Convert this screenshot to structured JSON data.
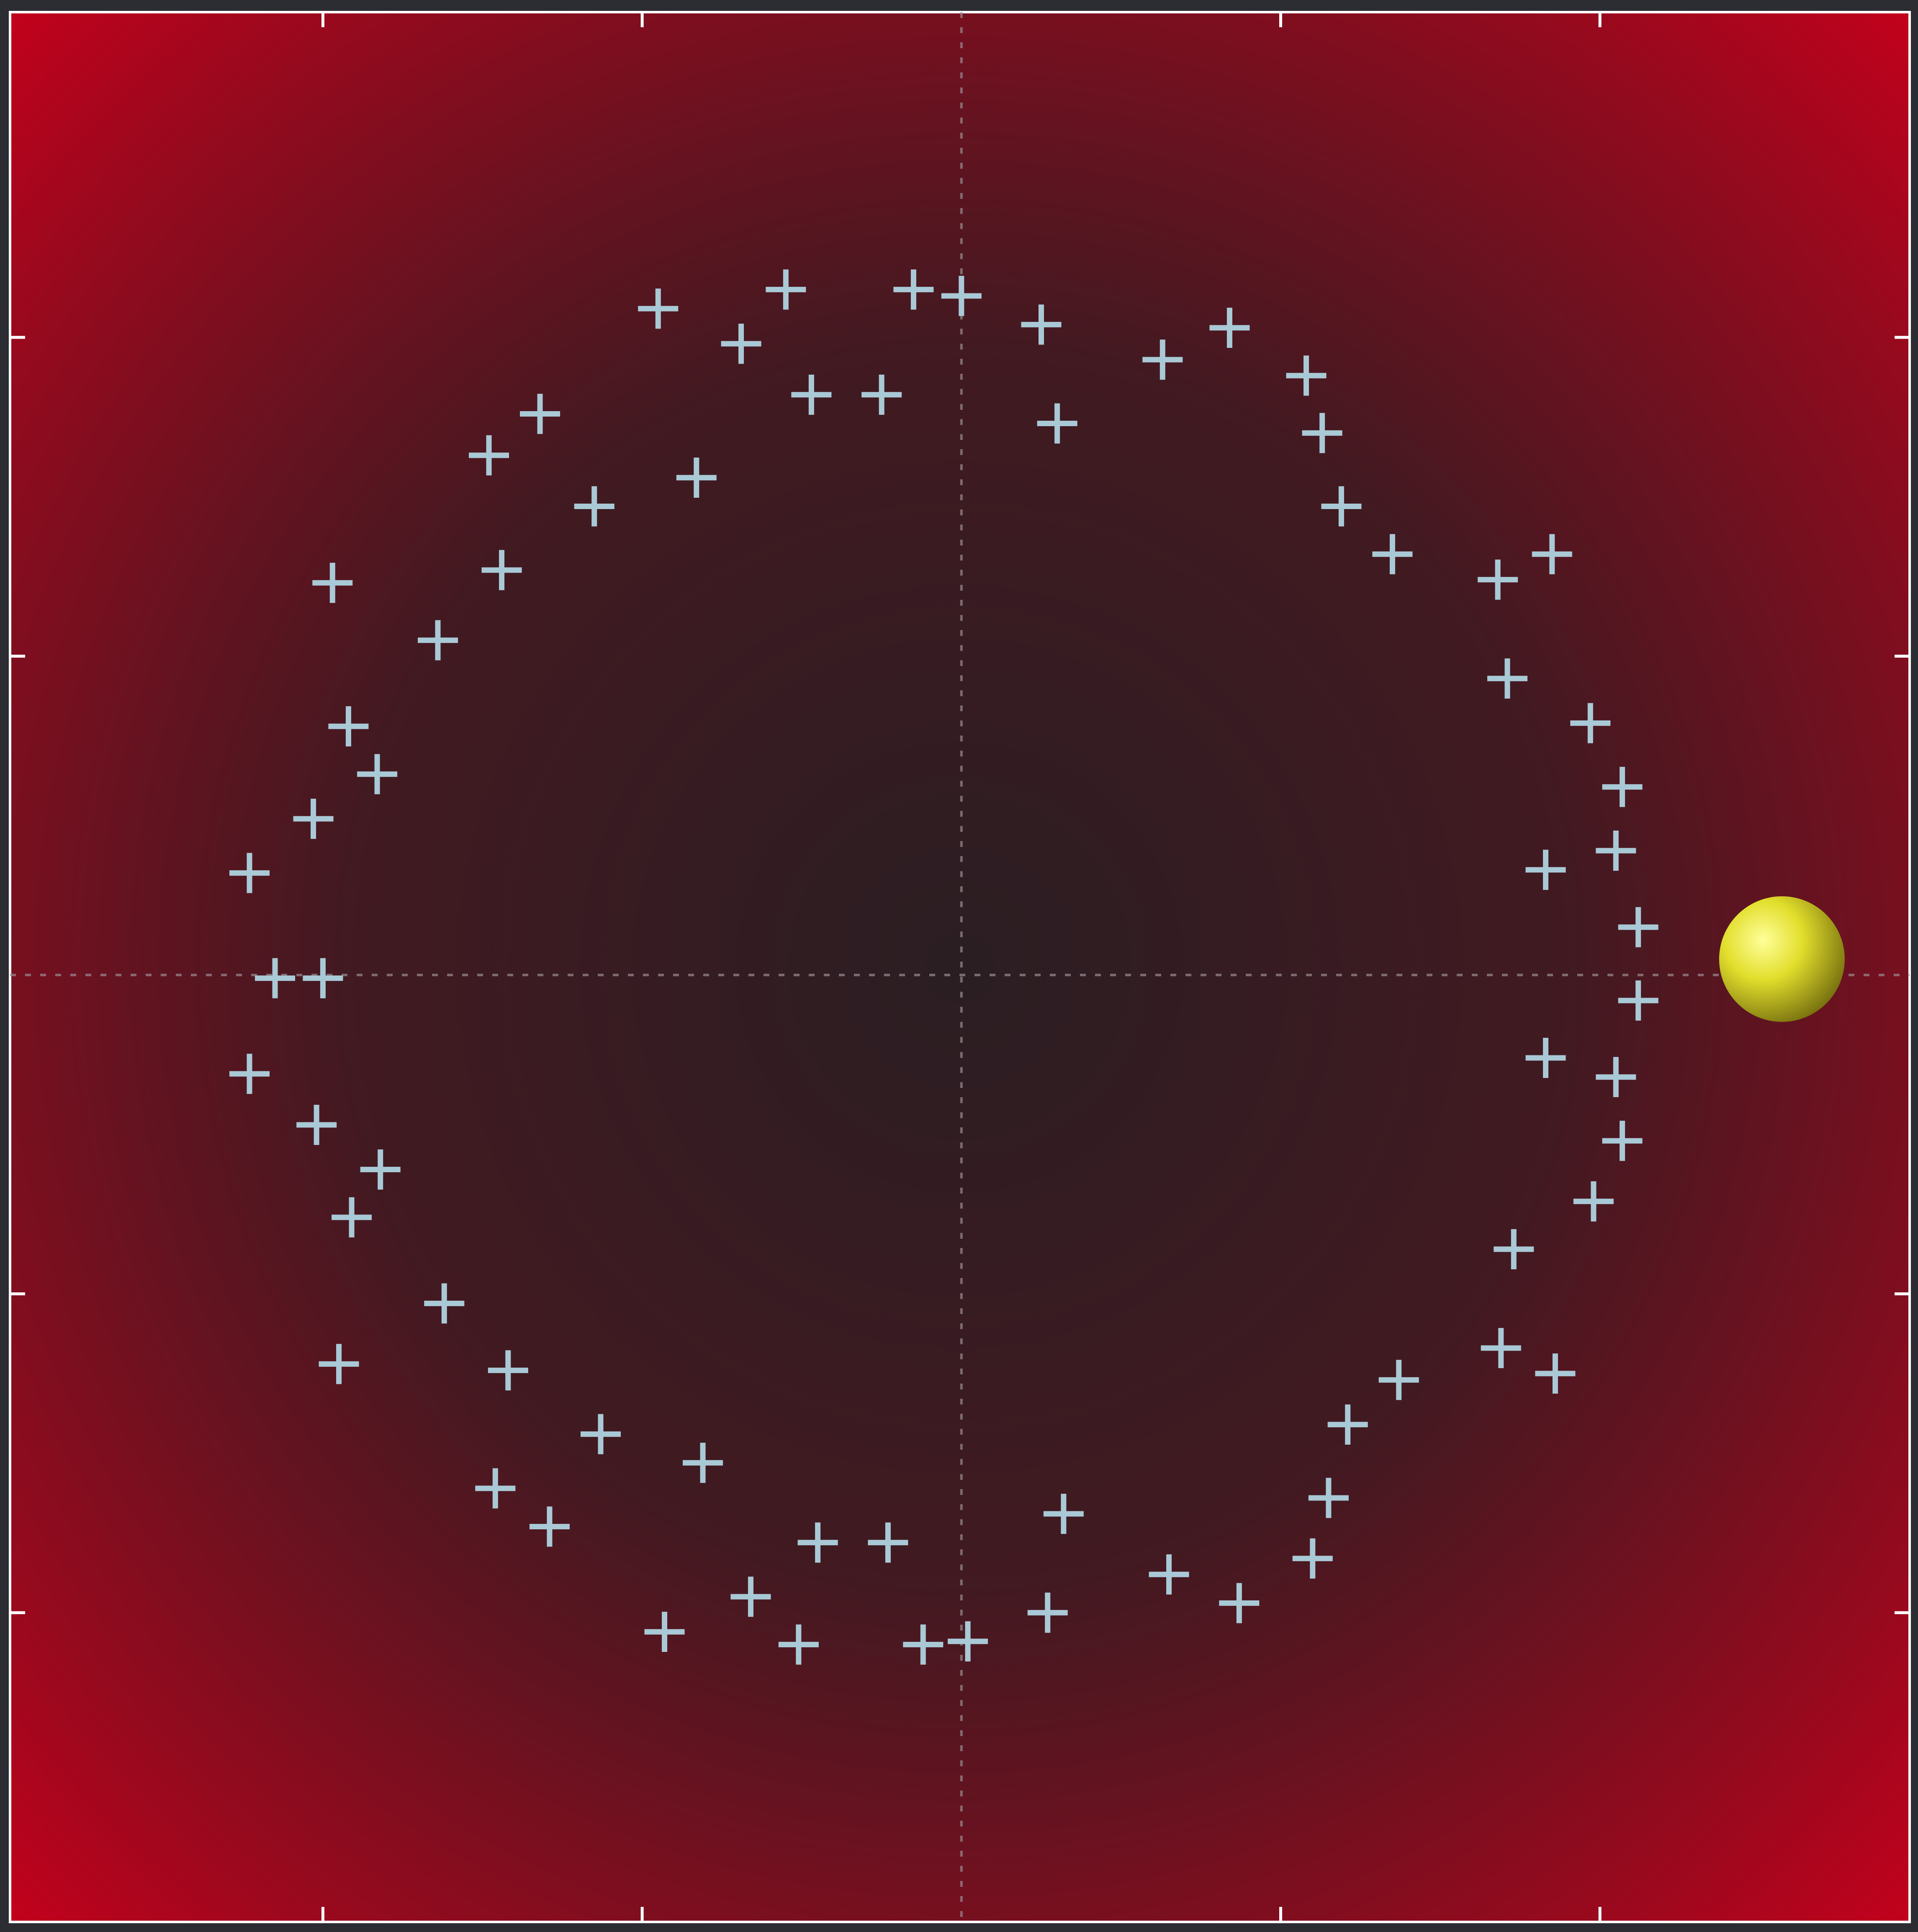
{
  "chart_data": {
    "type": "scatter",
    "xlim": [
      -2.98,
      2.97
    ],
    "ylim": [
      -2.97,
      3.02
    ],
    "xticks": [
      -2,
      -1,
      1,
      2
    ],
    "yticks": [
      -2,
      -1,
      1,
      2
    ],
    "crosshair": true,
    "background": {
      "center": "#2a1e22",
      "edge": "#c8001c"
    },
    "series": [
      {
        "color": "#a9c9d6",
        "x": [
          -0.95,
          -0.55,
          -0.15,
          0.0,
          0.25,
          0.84,
          0.63,
          1.08,
          -0.69,
          -0.47,
          -0.25,
          0.3,
          1.13,
          -1.32,
          -1.48,
          -0.83,
          -1.15,
          1.19,
          1.35,
          1.85,
          1.68,
          -1.97,
          -1.44,
          -1.64,
          1.71,
          -1.92,
          1.97,
          -1.83,
          2.07,
          -2.03,
          2.05,
          1.83,
          -2.23,
          2.12,
          -2.15,
          -2.0,
          2.12,
          -2.23,
          1.83,
          2.05,
          -2.02,
          2.07,
          -1.82,
          -1.91,
          1.98,
          1.73,
          -1.62,
          -1.95,
          -1.42,
          1.69,
          1.37,
          1.86,
          1.21,
          -1.13,
          -0.81,
          -1.46,
          1.15,
          -1.29,
          0.32,
          -0.45,
          -0.23,
          1.1,
          0.65,
          -0.66,
          0.87,
          -0.93,
          0.27,
          -0.51,
          -0.12,
          0.02
        ],
        "values": [
          2.09,
          2.15,
          2.15,
          2.13,
          2.04,
          2.03,
          1.93,
          1.88,
          1.98,
          1.82,
          1.82,
          1.73,
          1.7,
          1.76,
          1.63,
          1.56,
          1.47,
          1.47,
          1.32,
          1.32,
          1.24,
          1.23,
          1.27,
          1.05,
          0.93,
          0.78,
          0.79,
          0.63,
          0.59,
          0.49,
          0.39,
          0.33,
          0.32,
          0.15,
          -0.01,
          -0.01,
          -0.08,
          -0.31,
          -0.26,
          -0.32,
          -0.47,
          -0.52,
          -0.61,
          -0.76,
          -0.71,
          -0.86,
          -1.03,
          -1.22,
          -1.24,
          -1.17,
          -1.27,
          -1.25,
          -1.41,
          -1.44,
          -1.53,
          -1.61,
          -1.64,
          -1.73,
          -1.69,
          -1.78,
          -1.78,
          -1.83,
          -1.88,
          -1.95,
          -1.97,
          -2.06,
          -2.0,
          -2.1,
          -2.1,
          -2.09
        ]
      }
    ],
    "marker": {
      "x": 2.57,
      "y": 0.05,
      "color": "#e2de2c"
    }
  }
}
